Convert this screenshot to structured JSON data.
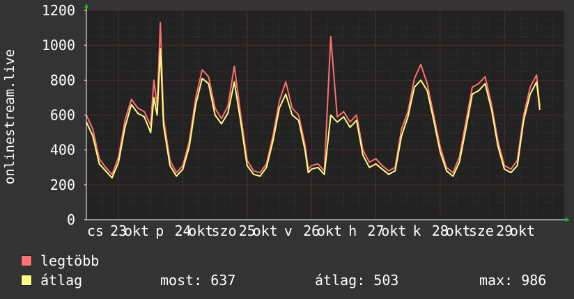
{
  "chart_data": {
    "type": "line",
    "ylabel": "onlinestream.live",
    "ylim": [
      0,
      1200
    ],
    "yticks": [
      0,
      200,
      400,
      600,
      800,
      1000,
      1200
    ],
    "xlim_days": [
      22.5,
      29.93
    ],
    "x_tick_labels": [
      {
        "label": "cs",
        "pos": 22.64
      },
      {
        "label": "23",
        "pos": 23.0
      },
      {
        "label": "okt",
        "pos": 23.28
      },
      {
        "label": "p",
        "pos": 23.64
      },
      {
        "label": "24",
        "pos": 24.0
      },
      {
        "label": "okt",
        "pos": 24.28
      },
      {
        "label": "szo",
        "pos": 24.64
      },
      {
        "label": "25",
        "pos": 25.0
      },
      {
        "label": "okt",
        "pos": 25.28
      },
      {
        "label": "v",
        "pos": 25.64
      },
      {
        "label": "26",
        "pos": 26.0
      },
      {
        "label": "okt",
        "pos": 26.28
      },
      {
        "label": "h",
        "pos": 26.64
      },
      {
        "label": "27",
        "pos": 27.0
      },
      {
        "label": "okt",
        "pos": 27.28
      },
      {
        "label": "k",
        "pos": 27.64
      },
      {
        "label": "28",
        "pos": 28.0
      },
      {
        "label": "okt",
        "pos": 28.28
      },
      {
        "label": "sze",
        "pos": 28.64
      },
      {
        "label": "29",
        "pos": 29.0
      },
      {
        "label": "okt",
        "pos": 29.28
      }
    ],
    "grid": true,
    "legend_position": "bottom-left",
    "series": [
      {
        "name": "legtöbb",
        "color": "#ff7070",
        "x": [
          22.5,
          22.6,
          22.7,
          22.8,
          22.9,
          23.0,
          23.1,
          23.2,
          23.3,
          23.4,
          23.5,
          23.55,
          23.6,
          23.65,
          23.7,
          23.8,
          23.9,
          24.0,
          24.1,
          24.2,
          24.3,
          24.4,
          24.5,
          24.6,
          24.7,
          24.8,
          24.9,
          25.0,
          25.1,
          25.2,
          25.3,
          25.4,
          25.5,
          25.6,
          25.7,
          25.8,
          25.9,
          25.95,
          26.0,
          26.1,
          26.2,
          26.3,
          26.4,
          26.5,
          26.6,
          26.7,
          26.8,
          26.9,
          27.0,
          27.1,
          27.2,
          27.3,
          27.4,
          27.5,
          27.6,
          27.7,
          27.8,
          27.9,
          28.0,
          28.1,
          28.2,
          28.3,
          28.4,
          28.5,
          28.6,
          28.7,
          28.8,
          28.9,
          29.0,
          29.1,
          29.2,
          29.3,
          29.4,
          29.5,
          29.55
        ],
        "values": [
          600,
          520,
          350,
          300,
          260,
          360,
          570,
          690,
          640,
          620,
          540,
          800,
          650,
          1130,
          580,
          340,
          270,
          310,
          450,
          700,
          860,
          820,
          640,
          580,
          650,
          880,
          600,
          340,
          280,
          270,
          320,
          480,
          680,
          790,
          640,
          600,
          430,
          290,
          310,
          320,
          280,
          1050,
          590,
          620,
          560,
          600,
          400,
          330,
          350,
          310,
          280,
          300,
          520,
          620,
          810,
          890,
          780,
          600,
          420,
          300,
          270,
          360,
          560,
          760,
          780,
          820,
          660,
          450,
          310,
          290,
          340,
          600,
          760,
          830,
          650
        ]
      },
      {
        "name": "átlag",
        "color": "#ffff80",
        "x": [
          22.5,
          22.6,
          22.7,
          22.8,
          22.9,
          23.0,
          23.1,
          23.2,
          23.3,
          23.4,
          23.5,
          23.55,
          23.6,
          23.65,
          23.7,
          23.8,
          23.9,
          24.0,
          24.1,
          24.2,
          24.3,
          24.4,
          24.5,
          24.6,
          24.7,
          24.8,
          24.9,
          25.0,
          25.1,
          25.2,
          25.3,
          25.4,
          25.5,
          25.6,
          25.7,
          25.8,
          25.9,
          25.95,
          26.0,
          26.1,
          26.2,
          26.3,
          26.4,
          26.5,
          26.6,
          26.7,
          26.8,
          26.9,
          27.0,
          27.1,
          27.2,
          27.3,
          27.4,
          27.5,
          27.6,
          27.7,
          27.8,
          27.9,
          28.0,
          28.1,
          28.2,
          28.3,
          28.4,
          28.5,
          28.6,
          28.7,
          28.8,
          28.9,
          29.0,
          29.1,
          29.2,
          29.3,
          29.4,
          29.5,
          29.55
        ],
        "values": [
          560,
          480,
          320,
          280,
          240,
          330,
          530,
          660,
          610,
          590,
          500,
          700,
          600,
          980,
          540,
          310,
          250,
          290,
          420,
          660,
          810,
          780,
          600,
          550,
          610,
          790,
          560,
          310,
          260,
          250,
          300,
          450,
          640,
          720,
          600,
          570,
          400,
          270,
          290,
          300,
          260,
          600,
          560,
          590,
          530,
          570,
          370,
          300,
          320,
          290,
          260,
          280,
          480,
          590,
          760,
          800,
          740,
          570,
          390,
          280,
          250,
          330,
          520,
          720,
          740,
          780,
          630,
          420,
          290,
          270,
          310,
          570,
          720,
          790,
          630
        ]
      }
    ]
  },
  "legend": [
    {
      "label": "legtöbb",
      "color": "#ff7070"
    },
    {
      "label": "átlag",
      "color": "#ffff80"
    }
  ],
  "stats": {
    "now": "most: 637",
    "avg": "átlag: 503",
    "max": "max: 986"
  }
}
